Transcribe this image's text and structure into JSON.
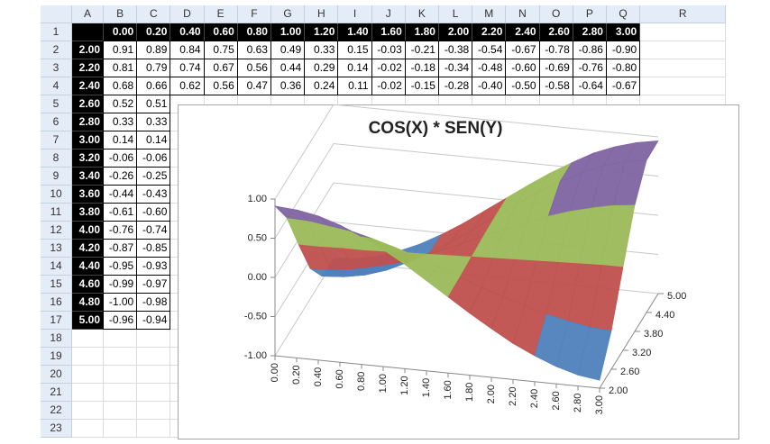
{
  "sheet": {
    "columns": [
      "A",
      "B",
      "C",
      "D",
      "E",
      "F",
      "G",
      "H",
      "I",
      "J",
      "K",
      "L",
      "M",
      "N",
      "O",
      "P",
      "Q",
      "R"
    ],
    "row_numbers": [
      1,
      2,
      3,
      4,
      5,
      6,
      7,
      8,
      9,
      10,
      11,
      12,
      13,
      14,
      15,
      16,
      17,
      18,
      19,
      20,
      21,
      22,
      23
    ],
    "x_headers": [
      "0.00",
      "0.20",
      "0.40",
      "0.60",
      "0.80",
      "1.00",
      "1.20",
      "1.40",
      "1.60",
      "1.80",
      "2.00",
      "2.20",
      "2.40",
      "2.60",
      "2.80",
      "3.00"
    ],
    "rows": [
      {
        "label": "2.00",
        "values": [
          "0.91",
          "0.89",
          "0.84",
          "0.75",
          "0.63",
          "0.49",
          "0.33",
          "0.15",
          "-0.03",
          "-0.21",
          "-0.38",
          "-0.54",
          "-0.67",
          "-0.78",
          "-0.86",
          "-0.90"
        ]
      },
      {
        "label": "2.20",
        "values": [
          "0.81",
          "0.79",
          "0.74",
          "0.67",
          "0.56",
          "0.44",
          "0.29",
          "0.14",
          "-0.02",
          "-0.18",
          "-0.34",
          "-0.48",
          "-0.60",
          "-0.69",
          "-0.76",
          "-0.80"
        ]
      },
      {
        "label": "2.40",
        "values": [
          "0.68",
          "0.66",
          "0.62",
          "0.56",
          "0.47",
          "0.36",
          "0.24",
          "0.11",
          "-0.02",
          "-0.15",
          "-0.28",
          "-0.40",
          "-0.50",
          "-0.58",
          "-0.64",
          "-0.67"
        ]
      },
      {
        "label": "2.60",
        "values": [
          "0.52",
          "0.51"
        ]
      },
      {
        "label": "2.80",
        "values": [
          "0.33",
          "0.33"
        ]
      },
      {
        "label": "3.00",
        "values": [
          "0.14",
          "0.14"
        ]
      },
      {
        "label": "3.20",
        "values": [
          "-0.06",
          "-0.06"
        ]
      },
      {
        "label": "3.40",
        "values": [
          "-0.26",
          "-0.25"
        ]
      },
      {
        "label": "3.60",
        "values": [
          "-0.44",
          "-0.43"
        ]
      },
      {
        "label": "3.80",
        "values": [
          "-0.61",
          "-0.60"
        ]
      },
      {
        "label": "4.00",
        "values": [
          "-0.76",
          "-0.74"
        ]
      },
      {
        "label": "4.20",
        "values": [
          "-0.87",
          "-0.85"
        ]
      },
      {
        "label": "4.40",
        "values": [
          "-0.95",
          "-0.93"
        ]
      },
      {
        "label": "4.60",
        "values": [
          "-0.99",
          "-0.97"
        ]
      },
      {
        "label": "4.80",
        "values": [
          "-1.00",
          "-0.98"
        ]
      },
      {
        "label": "5.00",
        "values": [
          "-0.96",
          "-0.94"
        ]
      }
    ]
  },
  "chart_data": {
    "type": "surface",
    "title": "COS(X) * SEN(Y)",
    "categories": [
      "0.00",
      "0.20",
      "0.40",
      "0.60",
      "0.80",
      "1.00",
      "1.20",
      "1.40",
      "1.60",
      "1.80",
      "2.00",
      "2.20",
      "2.40",
      "2.60",
      "2.80",
      "3.00"
    ],
    "series": [
      {
        "name": "2.00",
        "values": [
          0.91,
          0.89,
          0.84,
          0.75,
          0.63,
          0.49,
          0.33,
          0.15,
          -0.03,
          -0.21,
          -0.38,
          -0.54,
          -0.67,
          -0.78,
          -0.86,
          -0.9
        ]
      },
      {
        "name": "2.60",
        "values": [
          0.52,
          0.51,
          0.47,
          0.43,
          0.36,
          0.28,
          0.19,
          0.09,
          -0.02,
          -0.12,
          -0.21,
          -0.3,
          -0.38,
          -0.44,
          -0.49,
          -0.51
        ]
      },
      {
        "name": "3.20",
        "values": [
          -0.06,
          -0.06,
          -0.05,
          -0.05,
          -0.04,
          -0.03,
          -0.02,
          -0.01,
          0.0,
          0.01,
          0.02,
          0.03,
          0.04,
          0.05,
          0.06,
          0.06
        ]
      },
      {
        "name": "3.80",
        "values": [
          -0.61,
          -0.6,
          -0.56,
          -0.5,
          -0.43,
          -0.33,
          -0.22,
          -0.1,
          0.02,
          0.14,
          0.25,
          0.36,
          0.45,
          0.52,
          0.58,
          0.61
        ]
      },
      {
        "name": "4.40",
        "values": [
          -0.95,
          -0.93,
          -0.88,
          -0.79,
          -0.66,
          -0.51,
          -0.34,
          -0.16,
          0.03,
          0.22,
          0.4,
          0.56,
          0.7,
          0.82,
          0.9,
          0.94
        ]
      },
      {
        "name": "5.00",
        "values": [
          -0.96,
          -0.94,
          -0.88,
          -0.79,
          -0.67,
          -0.52,
          -0.35,
          -0.16,
          0.03,
          0.22,
          0.4,
          0.56,
          0.71,
          0.82,
          0.9,
          0.95
        ]
      }
    ],
    "zlim": [
      -1,
      1
    ],
    "zticks": [
      {
        "value": -1,
        "label": "-1.00"
      },
      {
        "value": -0.5,
        "label": "-0.50"
      },
      {
        "value": 0,
        "label": "0.00"
      },
      {
        "value": 0.5,
        "label": "0.50"
      },
      {
        "value": 1,
        "label": "1.00"
      }
    ],
    "band_colors": [
      "#4f81bd",
      "#c0504d",
      "#9bbb59",
      "#8064a2"
    ]
  }
}
